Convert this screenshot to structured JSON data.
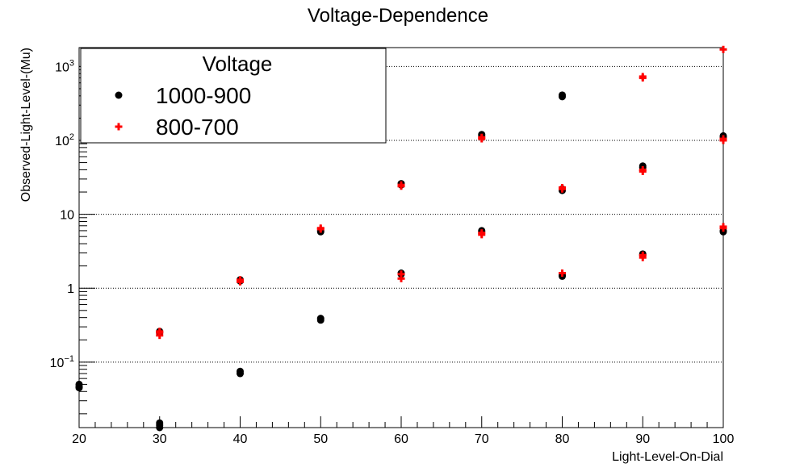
{
  "chart_data": {
    "type": "scatter",
    "title": "Voltage-Dependence",
    "xlabel": "Light-Level-On-Dial",
    "ylabel": "Observed-Light-Level-(Mu)",
    "xlim": [
      20,
      100
    ],
    "ylim": [
      0.013,
      1800
    ],
    "yscale": "log",
    "x_ticks": [
      "20",
      "30",
      "40",
      "50",
      "60",
      "70",
      "80",
      "90",
      "100"
    ],
    "y_ticks": [
      {
        "base": "10",
        "exp": "−1",
        "value": 0.1
      },
      {
        "base": "1",
        "exp": "",
        "value": 1
      },
      {
        "base": "10",
        "exp": "",
        "value": 10
      },
      {
        "base": "10",
        "exp": "2",
        "value": 100
      },
      {
        "base": "10",
        "exp": "3",
        "value": 1000
      }
    ],
    "grid": {
      "x": false,
      "y": true
    },
    "legend": {
      "title": "Voltage",
      "position": "top-left"
    },
    "series": [
      {
        "name": "1000-900",
        "color": "#000000",
        "marker": "circle",
        "points": [
          [
            20,
            0.047
          ],
          [
            20,
            0.05
          ],
          [
            20,
            0.045
          ],
          [
            30,
            0.014
          ],
          [
            30,
            0.015
          ],
          [
            30,
            0.013
          ],
          [
            30,
            0.25
          ],
          [
            30,
            0.26
          ],
          [
            40,
            0.07
          ],
          [
            40,
            0.075
          ],
          [
            40,
            1.3
          ],
          [
            40,
            1.25
          ],
          [
            50,
            0.37
          ],
          [
            50,
            0.39
          ],
          [
            50,
            5.8
          ],
          [
            50,
            6.0
          ],
          [
            60,
            1.6
          ],
          [
            60,
            1.55
          ],
          [
            60,
            26
          ],
          [
            60,
            25
          ],
          [
            70,
            6.0
          ],
          [
            70,
            5.8
          ],
          [
            70,
            120
          ],
          [
            70,
            115
          ],
          [
            80,
            1.5
          ],
          [
            80,
            1.45
          ],
          [
            80,
            22
          ],
          [
            80,
            21
          ],
          [
            80,
            410
          ],
          [
            80,
            390
          ],
          [
            90,
            2.9
          ],
          [
            90,
            2.8
          ],
          [
            90,
            45
          ],
          [
            90,
            43
          ],
          [
            100,
            6.0
          ],
          [
            100,
            5.8
          ],
          [
            100,
            115
          ],
          [
            100,
            110
          ]
        ]
      },
      {
        "name": "800-700",
        "color": "#ff0000",
        "marker": "cross",
        "points": [
          [
            30,
            0.25
          ],
          [
            30,
            0.23
          ],
          [
            30,
            0.26
          ],
          [
            40,
            1.3
          ],
          [
            40,
            1.22
          ],
          [
            50,
            6.3
          ],
          [
            50,
            6.5
          ],
          [
            60,
            1.55
          ],
          [
            60,
            1.35
          ],
          [
            60,
            25
          ],
          [
            60,
            24
          ],
          [
            70,
            5.6
          ],
          [
            70,
            5.3
          ],
          [
            70,
            110
          ],
          [
            70,
            105
          ],
          [
            80,
            1.6
          ],
          [
            80,
            22
          ],
          [
            80,
            23
          ],
          [
            90,
            2.8
          ],
          [
            90,
            2.6
          ],
          [
            90,
            38
          ],
          [
            90,
            40
          ],
          [
            90,
            730
          ],
          [
            90,
            700
          ],
          [
            100,
            6.5
          ],
          [
            100,
            6.8
          ],
          [
            100,
            105
          ],
          [
            100,
            100
          ],
          [
            100,
            1700
          ]
        ]
      }
    ]
  }
}
